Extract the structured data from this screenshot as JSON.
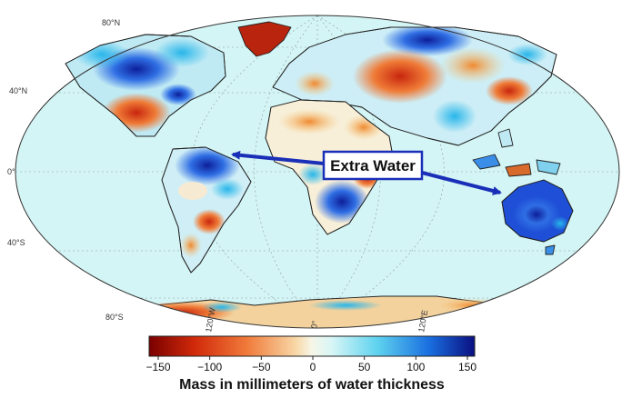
{
  "map": {
    "lat_labels": [
      "80°N",
      "40°N",
      "0°",
      "40°S",
      "80°S"
    ],
    "lon_labels": [
      "120°W",
      "0°",
      "120°E"
    ]
  },
  "callout": {
    "label": "Extra Water",
    "arrow_color": "#1a2fb8"
  },
  "colorbar": {
    "ticks": [
      "−150",
      "−100",
      "−50",
      "0",
      "50",
      "100",
      "150"
    ],
    "title": "Mass in millimeters of water thickness",
    "range": [
      -150,
      150
    ],
    "colors": [
      "#7a0000",
      "#d12a0a",
      "#f07a3a",
      "#f8d7a6",
      "#d8f6f6",
      "#5fd3ef",
      "#1a6fe0",
      "#0a0f80"
    ]
  },
  "colors": {
    "ocean": "#d4f5f5",
    "wet": "#1f4fd8",
    "dry": "#d2461c"
  }
}
